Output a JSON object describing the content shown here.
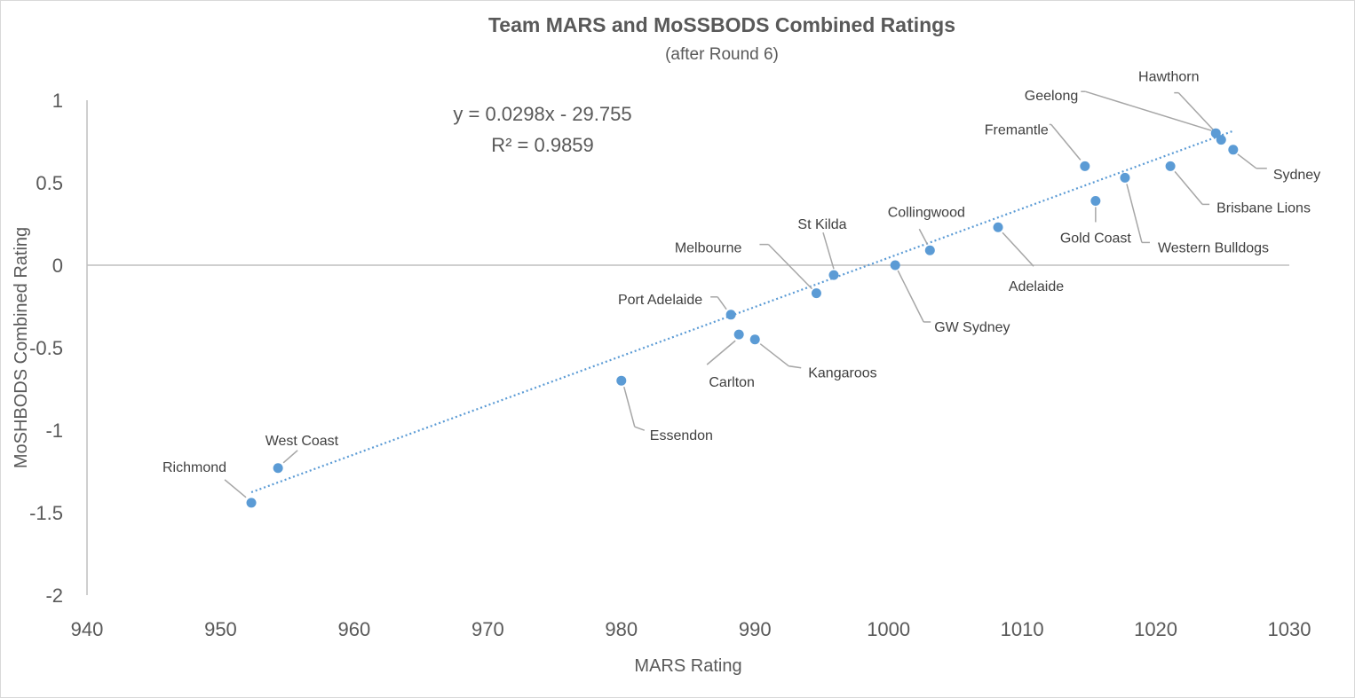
{
  "chart_data": {
    "type": "scatter",
    "title": "Team MARS and MoSSBODS Combined Ratings",
    "subtitle": "(after Round 6)",
    "xlabel": "MARS Rating",
    "ylabel": "MoSHBODS Combined Rating",
    "xlim": [
      940,
      1030
    ],
    "ylim": [
      -2,
      1
    ],
    "x_ticks": [
      "940",
      "950",
      "960",
      "970",
      "980",
      "990",
      "1000",
      "1010",
      "1020",
      "1030"
    ],
    "y_ticks": [
      "1",
      "0.5",
      "0",
      "-0.5",
      "-1",
      "-1.5",
      "-2"
    ],
    "grid": false,
    "trendline": {
      "type": "linear",
      "style": "dotted",
      "equation": "y = 0.0298x - 29.755",
      "r_squared": "R² = 0.9859",
      "slope": 0.0298,
      "intercept": -29.755
    },
    "points": [
      {
        "team": "Richmond",
        "x": 952.3,
        "y": -1.44
      },
      {
        "team": "West Coast",
        "x": 954.3,
        "y": -1.23
      },
      {
        "team": "Essendon",
        "x": 980.0,
        "y": -0.7
      },
      {
        "team": "Port Adelaide",
        "x": 988.2,
        "y": -0.3
      },
      {
        "team": "Carlton",
        "x": 988.8,
        "y": -0.42
      },
      {
        "team": "Kangaroos",
        "x": 990.0,
        "y": -0.45
      },
      {
        "team": "Melbourne",
        "x": 994.6,
        "y": -0.17
      },
      {
        "team": "St Kilda",
        "x": 995.9,
        "y": -0.06
      },
      {
        "team": "GW Sydney",
        "x": 1000.5,
        "y": 0.0
      },
      {
        "team": "Collingwood",
        "x": 1003.1,
        "y": 0.09
      },
      {
        "team": "Adelaide",
        "x": 1008.2,
        "y": 0.23
      },
      {
        "team": "Fremantle",
        "x": 1014.7,
        "y": 0.6
      },
      {
        "team": "Gold Coast",
        "x": 1015.5,
        "y": 0.39
      },
      {
        "team": "Western Bulldogs",
        "x": 1017.7,
        "y": 0.53
      },
      {
        "team": "Brisbane Lions",
        "x": 1021.1,
        "y": 0.6
      },
      {
        "team": "Geelong",
        "x": 1024.5,
        "y": 0.8
      },
      {
        "team": "Hawthorn",
        "x": 1024.9,
        "y": 0.76
      },
      {
        "team": "Sydney",
        "x": 1025.8,
        "y": 0.7
      }
    ]
  }
}
